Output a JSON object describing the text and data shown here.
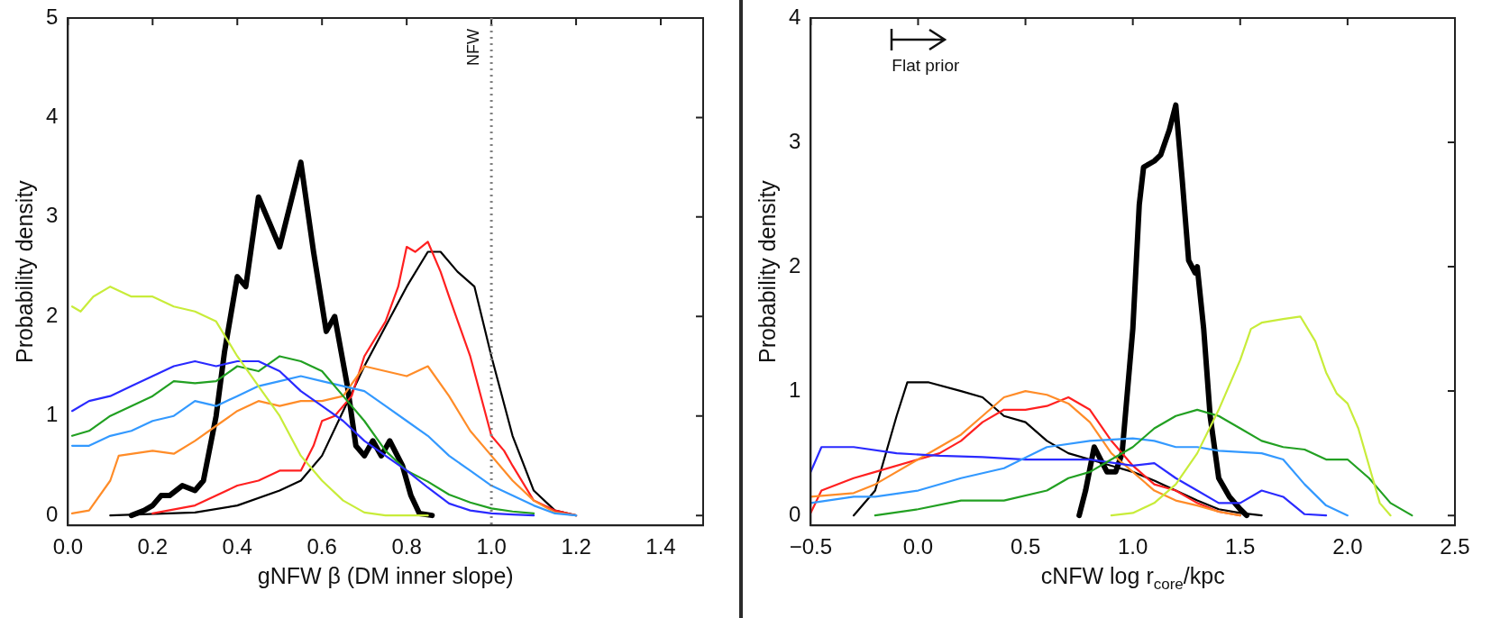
{
  "chart_data": [
    {
      "type": "line",
      "xlabel": "gNFW β (DM inner slope)",
      "ylabel": "Probability density",
      "xlim": [
        0,
        1.5
      ],
      "ylim": [
        -0.1,
        5
      ],
      "xticks": [
        {
          "value": 0,
          "label": "0.0"
        },
        {
          "value": 0.2,
          "label": "0.2"
        },
        {
          "value": 0.4,
          "label": "0.4"
        },
        {
          "value": 0.6,
          "label": "0.6"
        },
        {
          "value": 0.8,
          "label": "0.8"
        },
        {
          "value": 1.0,
          "label": "1.0"
        },
        {
          "value": 1.2,
          "label": "1.2"
        },
        {
          "value": 1.4,
          "label": "1.4"
        }
      ],
      "yticks": [
        0,
        1,
        2,
        3,
        4,
        5
      ],
      "grid": false,
      "legend": false,
      "marker": "none",
      "line_style": "solid",
      "ref_lines": [
        {
          "axis": "x",
          "value": 1.0,
          "label": "NFW",
          "color": "#808080",
          "line_style": "dotted"
        }
      ],
      "series": [
        {
          "color": "#c8ec3a",
          "x": [
            0.01,
            0.03,
            0.06,
            0.1,
            0.15,
            0.2,
            0.25,
            0.3,
            0.35,
            0.4,
            0.45,
            0.5,
            0.55,
            0.6,
            0.65,
            0.7,
            0.75,
            0.85
          ],
          "values": [
            2.1,
            2.05,
            2.2,
            2.3,
            2.2,
            2.2,
            2.1,
            2.05,
            1.95,
            1.6,
            1.3,
            1.0,
            0.6,
            0.35,
            0.15,
            0.03,
            0,
            0
          ]
        },
        {
          "color": "#2a2aff",
          "x": [
            0.01,
            0.05,
            0.1,
            0.15,
            0.2,
            0.25,
            0.3,
            0.35,
            0.4,
            0.45,
            0.5,
            0.55,
            0.6,
            0.65,
            0.7,
            0.75,
            0.8,
            0.85,
            0.9,
            0.95,
            1.0,
            1.05,
            1.1
          ],
          "values": [
            1.05,
            1.15,
            1.2,
            1.3,
            1.4,
            1.5,
            1.55,
            1.5,
            1.55,
            1.55,
            1.45,
            1.25,
            1.1,
            0.95,
            0.75,
            0.6,
            0.45,
            0.28,
            0.12,
            0.05,
            0.02,
            0.01,
            0
          ]
        },
        {
          "color": "#22a022",
          "x": [
            0.01,
            0.05,
            0.1,
            0.15,
            0.2,
            0.25,
            0.3,
            0.35,
            0.4,
            0.45,
            0.5,
            0.55,
            0.6,
            0.65,
            0.7,
            0.75,
            0.8,
            0.85,
            0.9,
            0.95,
            1.0,
            1.05,
            1.1
          ],
          "values": [
            0.8,
            0.85,
            1.0,
            1.1,
            1.2,
            1.35,
            1.33,
            1.35,
            1.5,
            1.45,
            1.6,
            1.55,
            1.45,
            1.2,
            0.95,
            0.65,
            0.45,
            0.34,
            0.21,
            0.13,
            0.07,
            0.04,
            0.02
          ]
        },
        {
          "color": "#3399ff",
          "x": [
            0.01,
            0.05,
            0.1,
            0.15,
            0.2,
            0.25,
            0.3,
            0.35,
            0.4,
            0.45,
            0.5,
            0.55,
            0.6,
            0.65,
            0.7,
            0.75,
            0.8,
            0.85,
            0.9,
            0.95,
            1.0,
            1.05,
            1.1,
            1.15,
            1.2
          ],
          "values": [
            0.7,
            0.7,
            0.8,
            0.85,
            0.95,
            1.0,
            1.15,
            1.1,
            1.2,
            1.3,
            1.35,
            1.4,
            1.35,
            1.3,
            1.25,
            1.1,
            0.95,
            0.8,
            0.6,
            0.45,
            0.3,
            0.2,
            0.1,
            0.02,
            0
          ]
        },
        {
          "color": "#ff8c28",
          "x": [
            0.01,
            0.05,
            0.1,
            0.12,
            0.2,
            0.25,
            0.3,
            0.35,
            0.4,
            0.45,
            0.5,
            0.55,
            0.6,
            0.65,
            0.7,
            0.75,
            0.8,
            0.85,
            0.9,
            0.95,
            1.0,
            1.05,
            1.1,
            1.15,
            1.2
          ],
          "values": [
            0.02,
            0.05,
            0.35,
            0.6,
            0.65,
            0.62,
            0.75,
            0.9,
            1.05,
            1.15,
            1.1,
            1.15,
            1.15,
            1.2,
            1.5,
            1.45,
            1.4,
            1.5,
            1.2,
            0.85,
            0.6,
            0.35,
            0.15,
            0.03,
            0
          ]
        },
        {
          "color": "#ff2020",
          "x": [
            0.2,
            0.3,
            0.4,
            0.45,
            0.5,
            0.55,
            0.58,
            0.6,
            0.63,
            0.67,
            0.7,
            0.75,
            0.78,
            0.8,
            0.82,
            0.85,
            0.88,
            0.9,
            0.95,
            1.0,
            1.03,
            1.05,
            1.1,
            1.15,
            1.2
          ],
          "values": [
            0.02,
            0.1,
            0.3,
            0.35,
            0.45,
            0.45,
            0.7,
            0.95,
            1.0,
            1.2,
            1.6,
            1.95,
            2.3,
            2.7,
            2.65,
            2.75,
            2.45,
            2.2,
            1.6,
            0.8,
            0.65,
            0.5,
            0.15,
            0.05,
            0
          ]
        },
        {
          "color": "#000000",
          "x": [
            0.1,
            0.3,
            0.4,
            0.5,
            0.55,
            0.6,
            0.65,
            0.7,
            0.75,
            0.8,
            0.85,
            0.88,
            0.92,
            0.96,
            1.0,
            1.05,
            1.1,
            1.15,
            1.2
          ],
          "values": [
            0,
            0.03,
            0.1,
            0.25,
            0.35,
            0.6,
            1.05,
            1.5,
            1.9,
            2.3,
            2.65,
            2.65,
            2.45,
            2.3,
            1.6,
            0.8,
            0.25,
            0.05,
            0
          ]
        },
        {
          "color": "#000000",
          "x": [
            0.15,
            0.18,
            0.2,
            0.22,
            0.24,
            0.27,
            0.3,
            0.32,
            0.35,
            0.37,
            0.4,
            0.42,
            0.45,
            0.48,
            0.5,
            0.55,
            0.58,
            0.61,
            0.63,
            0.66,
            0.68,
            0.7,
            0.72,
            0.74,
            0.76,
            0.79,
            0.81,
            0.83,
            0.86
          ],
          "values": [
            0,
            0.05,
            0.1,
            0.2,
            0.2,
            0.3,
            0.25,
            0.35,
            1.0,
            1.65,
            2.4,
            2.3,
            3.2,
            2.9,
            2.7,
            3.55,
            2.65,
            1.85,
            2.0,
            1.3,
            0.7,
            0.6,
            0.75,
            0.6,
            0.75,
            0.5,
            0.2,
            0.02,
            0
          ]
        }
      ]
    },
    {
      "type": "line",
      "xlabel": "cNFW log r$_{core}$/kpc",
      "ylabel": "Probability density",
      "xlim": [
        -0.5,
        2.5
      ],
      "ylim": [
        -0.08,
        4
      ],
      "xticks": [
        {
          "value": -0.5,
          "label": "−0.5"
        },
        {
          "value": 0,
          "label": "0.0"
        },
        {
          "value": 0.5,
          "label": "0.5"
        },
        {
          "value": 1.0,
          "label": "1.0"
        },
        {
          "value": 1.5,
          "label": "1.5"
        },
        {
          "value": 2.0,
          "label": "2.0"
        },
        {
          "value": 2.5,
          "label": "2.5"
        }
      ],
      "yticks": [
        0,
        1,
        2,
        3,
        4
      ],
      "grid": false,
      "legend": false,
      "marker": "none",
      "line_style": "solid",
      "annotations": [
        "Flat prior"
      ],
      "series": [
        {
          "color": "#c8ec3a",
          "x": [
            0.9,
            1.0,
            1.1,
            1.2,
            1.3,
            1.4,
            1.5,
            1.55,
            1.6,
            1.7,
            1.78,
            1.85,
            1.9,
            1.95,
            2.0,
            2.05,
            2.1,
            2.15,
            2.2
          ],
          "values": [
            0,
            0.02,
            0.1,
            0.25,
            0.5,
            0.85,
            1.25,
            1.5,
            1.55,
            1.58,
            1.6,
            1.4,
            1.15,
            0.98,
            0.9,
            0.7,
            0.4,
            0.1,
            0
          ]
        },
        {
          "color": "#22a022",
          "x": [
            -0.2,
            0.0,
            0.2,
            0.4,
            0.6,
            0.7,
            0.8,
            0.9,
            1.0,
            1.1,
            1.2,
            1.3,
            1.4,
            1.5,
            1.6,
            1.7,
            1.8,
            1.9,
            2.0,
            2.1,
            2.2,
            2.3
          ],
          "values": [
            0,
            0.05,
            0.12,
            0.12,
            0.2,
            0.3,
            0.35,
            0.45,
            0.55,
            0.7,
            0.8,
            0.85,
            0.8,
            0.7,
            0.6,
            0.55,
            0.53,
            0.45,
            0.45,
            0.3,
            0.1,
            0
          ]
        },
        {
          "color": "#3399ff",
          "x": [
            -0.5,
            -0.3,
            -0.2,
            0.0,
            0.2,
            0.4,
            0.6,
            0.8,
            1.0,
            1.1,
            1.2,
            1.3,
            1.4,
            1.6,
            1.7,
            1.8,
            1.9,
            2.0
          ],
          "values": [
            0.1,
            0.15,
            0.15,
            0.2,
            0.3,
            0.38,
            0.55,
            0.6,
            0.62,
            0.6,
            0.55,
            0.55,
            0.52,
            0.5,
            0.45,
            0.25,
            0.08,
            0
          ]
        },
        {
          "color": "#2a2aff",
          "x": [
            -0.5,
            -0.45,
            -0.3,
            -0.1,
            0.1,
            0.3,
            0.5,
            0.8,
            1.0,
            1.1,
            1.2,
            1.3,
            1.4,
            1.5,
            1.6,
            1.7,
            1.8,
            1.9
          ],
          "values": [
            0.35,
            0.55,
            0.55,
            0.5,
            0.48,
            0.47,
            0.45,
            0.45,
            0.4,
            0.42,
            0.3,
            0.2,
            0.1,
            0.1,
            0.2,
            0.15,
            0.01,
            0
          ]
        },
        {
          "color": "#ff8c28",
          "x": [
            -0.5,
            -0.3,
            -0.2,
            0.0,
            0.2,
            0.3,
            0.4,
            0.5,
            0.6,
            0.7,
            0.8,
            0.9,
            1.0,
            1.1,
            1.2,
            1.3,
            1.4,
            1.5
          ],
          "values": [
            0.15,
            0.18,
            0.25,
            0.45,
            0.65,
            0.8,
            0.95,
            1.0,
            0.97,
            0.9,
            0.75,
            0.5,
            0.35,
            0.2,
            0.12,
            0.08,
            0.03,
            0
          ]
        },
        {
          "color": "#ff2020",
          "x": [
            -0.5,
            -0.45,
            -0.3,
            -0.2,
            0.0,
            0.1,
            0.2,
            0.3,
            0.4,
            0.5,
            0.6,
            0.7,
            0.8,
            0.9,
            1.0,
            1.1,
            1.2,
            1.3,
            1.4,
            1.5
          ],
          "values": [
            0.02,
            0.2,
            0.3,
            0.35,
            0.45,
            0.5,
            0.6,
            0.75,
            0.85,
            0.85,
            0.88,
            0.95,
            0.85,
            0.6,
            0.4,
            0.25,
            0.2,
            0.1,
            0.03,
            0
          ]
        },
        {
          "color": "#000000",
          "x": [
            -0.3,
            -0.2,
            -0.1,
            -0.05,
            0.05,
            0.2,
            0.3,
            0.4,
            0.5,
            0.6,
            0.7,
            0.8,
            0.9,
            1.0,
            1.1,
            1.2,
            1.3,
            1.4,
            1.5,
            1.6
          ],
          "values": [
            0,
            0.2,
            0.8,
            1.07,
            1.07,
            1.0,
            0.95,
            0.8,
            0.75,
            0.6,
            0.5,
            0.45,
            0.4,
            0.35,
            0.28,
            0.2,
            0.12,
            0.05,
            0.02,
            0
          ]
        },
        {
          "color": "#000000",
          "x": [
            0.75,
            0.78,
            0.82,
            0.85,
            0.88,
            0.92,
            0.95,
            1.0,
            1.03,
            1.05,
            1.1,
            1.13,
            1.17,
            1.2,
            1.23,
            1.26,
            1.29,
            1.3,
            1.33,
            1.36,
            1.4,
            1.45,
            1.5,
            1.53
          ],
          "values": [
            0,
            0.2,
            0.55,
            0.45,
            0.35,
            0.35,
            0.5,
            1.5,
            2.5,
            2.8,
            2.85,
            2.9,
            3.1,
            3.3,
            2.7,
            2.05,
            1.95,
            2.0,
            1.5,
            0.8,
            0.3,
            0.15,
            0.05,
            0
          ]
        }
      ]
    }
  ]
}
